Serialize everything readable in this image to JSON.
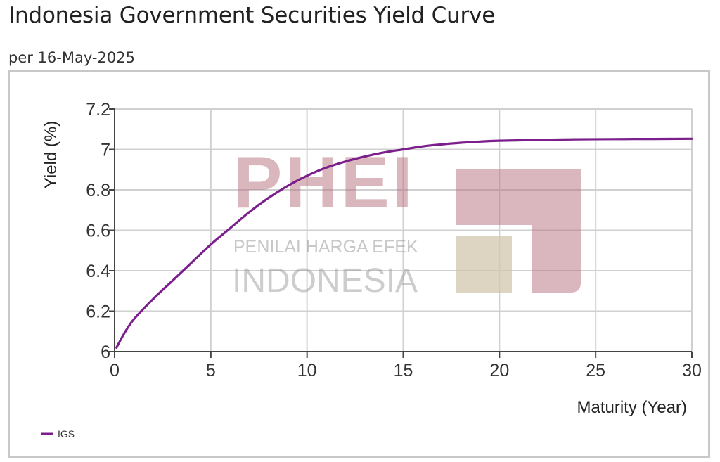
{
  "header": {
    "title": "Indonesia Government Securities Yield Curve",
    "subtitle": "per 16-May-2025"
  },
  "watermark": {
    "brand": "PHEI",
    "line1": "PENILAI HARGA EFEK",
    "line2": "INDONESIA",
    "colors": {
      "primary": "#b6707e",
      "secondary": "#d2c6ad"
    }
  },
  "chart_data": {
    "type": "line",
    "title": "",
    "xlabel": "Maturity (Year)",
    "ylabel": "Yield (%)",
    "xlim": [
      0,
      30
    ],
    "ylim": [
      6,
      7.2
    ],
    "x_ticks": [
      "0",
      "5",
      "10",
      "15",
      "20",
      "25",
      "30"
    ],
    "y_ticks": [
      "6",
      "6.2",
      "6.4",
      "6.6",
      "6.8",
      "7",
      "7.2"
    ],
    "grid": true,
    "legend_position": "bottom-left",
    "series": [
      {
        "name": "IGS",
        "color": "#7b1f8c",
        "x": [
          0.1,
          0.5,
          1,
          2,
          3,
          4,
          5,
          6,
          7,
          8,
          9,
          10,
          11,
          12,
          13,
          14,
          15,
          16,
          17,
          18,
          19,
          20,
          22,
          24,
          26,
          28,
          30
        ],
        "y": [
          6.02,
          6.09,
          6.16,
          6.26,
          6.35,
          6.44,
          6.53,
          6.61,
          6.69,
          6.76,
          6.82,
          6.87,
          6.91,
          6.94,
          6.965,
          6.985,
          7.0,
          7.015,
          7.025,
          7.033,
          7.039,
          7.043,
          7.047,
          7.05,
          7.051,
          7.052,
          7.053
        ]
      }
    ]
  }
}
